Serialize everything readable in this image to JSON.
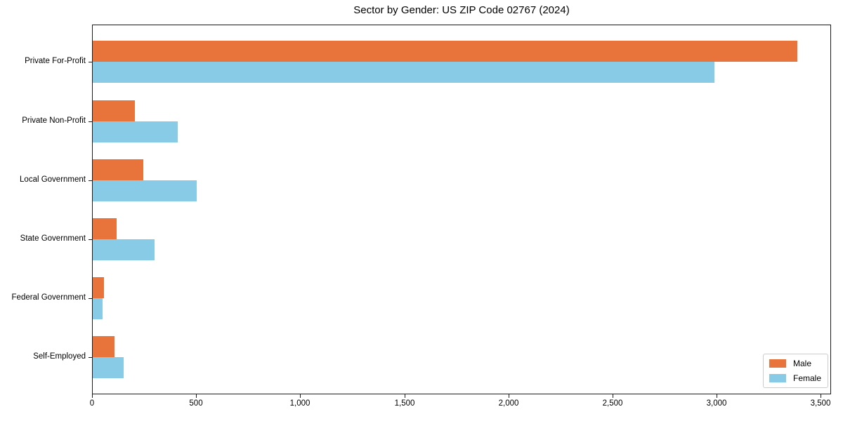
{
  "chart_data": {
    "type": "bar",
    "orientation": "horizontal",
    "title": "Sector by Gender: US ZIP Code 02767 (2024)",
    "categories": [
      "Private For-Profit",
      "Private Non-Profit",
      "Local Government",
      "State Government",
      "Federal Government",
      "Self-Employed"
    ],
    "series": [
      {
        "name": "Male",
        "color": "#e8743c",
        "values": [
          3385,
          202,
          242,
          114,
          53,
          104
        ]
      },
      {
        "name": "Female",
        "color": "#87cbe6",
        "values": [
          2985,
          407,
          500,
          298,
          48,
          149
        ]
      }
    ],
    "xlabel": "",
    "ylabel": "",
    "xlim": [
      0,
      3550
    ],
    "xticks": [
      0,
      500,
      1000,
      1500,
      2000,
      2500,
      3000,
      3500
    ],
    "xtick_labels": [
      "0",
      "500",
      "1,000",
      "1,500",
      "2,000",
      "2,500",
      "3,000",
      "3,500"
    ],
    "legend_position": "lower right",
    "grid": false,
    "background_color": "#ffffff",
    "spine_color": "#1a1a1a"
  }
}
